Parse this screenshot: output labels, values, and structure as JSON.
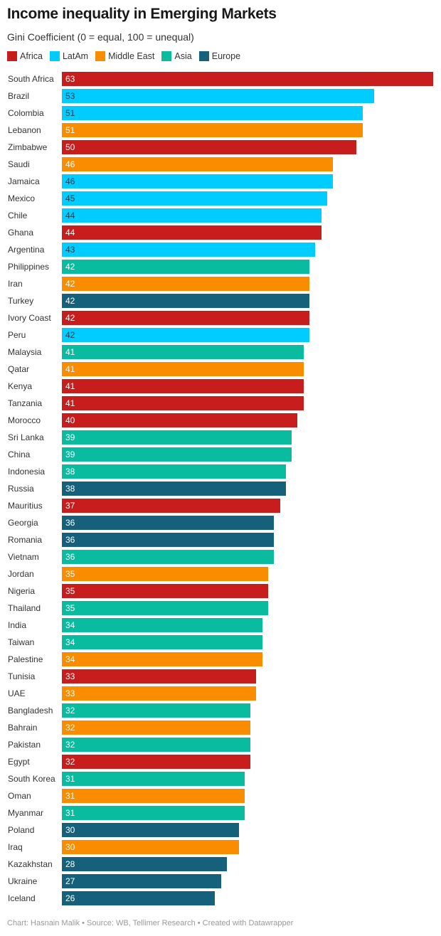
{
  "chart_data": {
    "type": "bar",
    "orientation": "horizontal",
    "title": "Income inequality in Emerging Markets",
    "subtitle": "Gini Coefficient (0 = equal, 100 = unequal)",
    "legend": [
      {
        "name": "Africa",
        "color": "#c71e1d"
      },
      {
        "name": "LatAm",
        "color": "#00ccff"
      },
      {
        "name": "Middle East",
        "color": "#fa8c00"
      },
      {
        "name": "Asia",
        "color": "#09bb9f"
      },
      {
        "name": "Europe",
        "color": "#15607a"
      }
    ],
    "xlim": [
      0,
      63
    ],
    "rows": [
      [
        "South Africa",
        63,
        "Africa"
      ],
      [
        "Brazil",
        53,
        "LatAm"
      ],
      [
        "Colombia",
        51,
        "LatAm"
      ],
      [
        "Lebanon",
        51,
        "Middle East"
      ],
      [
        "Zimbabwe",
        50,
        "Africa"
      ],
      [
        "Saudi",
        46,
        "Middle East"
      ],
      [
        "Jamaica",
        46,
        "LatAm"
      ],
      [
        "Mexico",
        45,
        "LatAm"
      ],
      [
        "Chile",
        44,
        "LatAm"
      ],
      [
        "Ghana",
        44,
        "Africa"
      ],
      [
        "Argentina",
        43,
        "LatAm"
      ],
      [
        "Philippines",
        42,
        "Asia"
      ],
      [
        "Iran",
        42,
        "Middle East"
      ],
      [
        "Turkey",
        42,
        "Europe"
      ],
      [
        "Ivory Coast",
        42,
        "Africa"
      ],
      [
        "Peru",
        42,
        "LatAm"
      ],
      [
        "Malaysia",
        41,
        "Asia"
      ],
      [
        "Qatar",
        41,
        "Middle East"
      ],
      [
        "Kenya",
        41,
        "Africa"
      ],
      [
        "Tanzania",
        41,
        "Africa"
      ],
      [
        "Morocco",
        40,
        "Africa"
      ],
      [
        "Sri Lanka",
        39,
        "Asia"
      ],
      [
        "China",
        39,
        "Asia"
      ],
      [
        "Indonesia",
        38,
        "Asia"
      ],
      [
        "Russia",
        38,
        "Europe"
      ],
      [
        "Mauritius",
        37,
        "Africa"
      ],
      [
        "Georgia",
        36,
        "Europe"
      ],
      [
        "Romania",
        36,
        "Europe"
      ],
      [
        "Vietnam",
        36,
        "Asia"
      ],
      [
        "Jordan",
        35,
        "Middle East"
      ],
      [
        "Nigeria",
        35,
        "Africa"
      ],
      [
        "Thailand",
        35,
        "Asia"
      ],
      [
        "India",
        34,
        "Asia"
      ],
      [
        "Taiwan",
        34,
        "Asia"
      ],
      [
        "Palestine",
        34,
        "Middle East"
      ],
      [
        "Tunisia",
        33,
        "Africa"
      ],
      [
        "UAE",
        33,
        "Middle East"
      ],
      [
        "Bangladesh",
        32,
        "Asia"
      ],
      [
        "Bahrain",
        32,
        "Middle East"
      ],
      [
        "Pakistan",
        32,
        "Asia"
      ],
      [
        "Egypt",
        32,
        "Africa"
      ],
      [
        "South Korea",
        31,
        "Asia"
      ],
      [
        "Oman",
        31,
        "Middle East"
      ],
      [
        "Myanmar",
        31,
        "Asia"
      ],
      [
        "Poland",
        30,
        "Europe"
      ],
      [
        "Iraq",
        30,
        "Middle East"
      ],
      [
        "Kazakhstan",
        28,
        "Europe"
      ],
      [
        "Ukraine",
        27,
        "Europe"
      ],
      [
        "Iceland",
        26,
        "Europe"
      ]
    ]
  },
  "footer": "Chart: Hasnain Malik • Source: WB, Tellimer Research • Created with Datawrapper"
}
